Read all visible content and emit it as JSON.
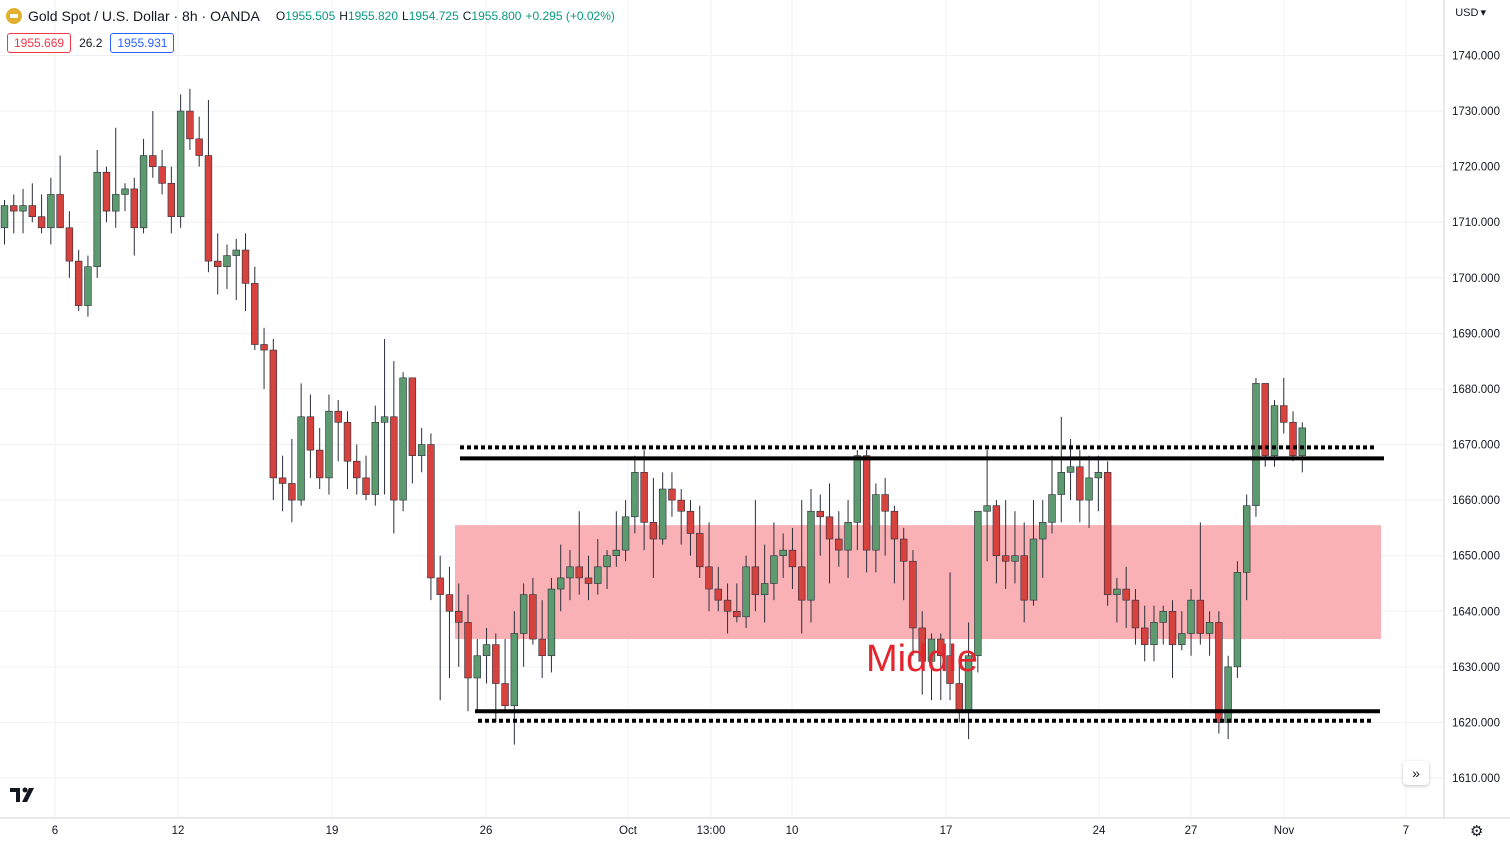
{
  "header": {
    "symbol": "Gold Spot / U.S. Dollar · 8h · OANDA",
    "open_label": "O",
    "open": "1955.505",
    "high_label": "H",
    "high": "1955.820",
    "low_label": "L",
    "low": "1954.725",
    "close_label": "C",
    "close": "1955.800",
    "change": "+0.295 (+0.02%)"
  },
  "quote": {
    "sell": "1955.669",
    "spread": "26.2",
    "buy": "1955.931"
  },
  "currency": "USD",
  "annotation": {
    "middle_label": "Middle"
  },
  "colors": {
    "up": "#5d9a6f",
    "down": "#d6433f",
    "grid": "#eef0f3",
    "zone": "#f9a8ad",
    "line": "#000000"
  },
  "chart_data": {
    "type": "candlestick",
    "ylim": [
      1605,
      1745
    ],
    "y_ticks": [
      "1740.000",
      "1730.000",
      "1720.000",
      "1710.000",
      "1700.000",
      "1690.000",
      "1680.000",
      "1670.000",
      "1660.000",
      "1650.000",
      "1640.000",
      "1630.000",
      "1620.000",
      "1610.000"
    ],
    "x_ticks": [
      "6",
      "12",
      "19",
      "26",
      "Oct",
      "13:00",
      "10",
      "17",
      "24",
      "27",
      "Nov",
      "7"
    ],
    "candles": [
      [
        1709,
        1714,
        1706,
        1713
      ],
      [
        1713,
        1715,
        1708,
        1712
      ],
      [
        1712,
        1716,
        1708,
        1713
      ],
      [
        1713,
        1717,
        1710,
        1711
      ],
      [
        1711,
        1715,
        1708,
        1709
      ],
      [
        1709,
        1718,
        1706,
        1715
      ],
      [
        1715,
        1722,
        1710,
        1709
      ],
      [
        1709,
        1712,
        1700,
        1703
      ],
      [
        1703,
        1705,
        1694,
        1695
      ],
      [
        1695,
        1704,
        1693,
        1702
      ],
      [
        1702,
        1723,
        1700,
        1719
      ],
      [
        1719,
        1720,
        1710,
        1712
      ],
      [
        1712,
        1727,
        1709,
        1715
      ],
      [
        1715,
        1717,
        1712,
        1716
      ],
      [
        1716,
        1718,
        1704,
        1709
      ],
      [
        1709,
        1725,
        1708,
        1722
      ],
      [
        1722,
        1730,
        1718,
        1720
      ],
      [
        1720,
        1723,
        1715,
        1717
      ],
      [
        1717,
        1720,
        1708,
        1711
      ],
      [
        1711,
        1733,
        1709,
        1730
      ],
      [
        1730,
        1734,
        1723,
        1725
      ],
      [
        1725,
        1729,
        1720,
        1722
      ],
      [
        1722,
        1732,
        1701,
        1703
      ],
      [
        1703,
        1708,
        1697,
        1702
      ],
      [
        1702,
        1706,
        1698,
        1704
      ],
      [
        1704,
        1707,
        1696,
        1705
      ],
      [
        1705,
        1708,
        1694,
        1699
      ],
      [
        1699,
        1702,
        1687,
        1688
      ],
      [
        1688,
        1691,
        1680,
        1687
      ],
      [
        1687,
        1689,
        1660,
        1664
      ],
      [
        1664,
        1668,
        1658,
        1663
      ],
      [
        1663,
        1671,
        1656,
        1660
      ],
      [
        1660,
        1681,
        1659,
        1675
      ],
      [
        1675,
        1679,
        1664,
        1669
      ],
      [
        1669,
        1673,
        1662,
        1664
      ],
      [
        1664,
        1679,
        1661,
        1676
      ],
      [
        1676,
        1678,
        1667,
        1674
      ],
      [
        1674,
        1676,
        1662,
        1667
      ],
      [
        1667,
        1670,
        1661,
        1664
      ],
      [
        1664,
        1668,
        1660,
        1661
      ],
      [
        1661,
        1677,
        1659,
        1674
      ],
      [
        1674,
        1689,
        1661,
        1675
      ],
      [
        1675,
        1685,
        1654,
        1660
      ],
      [
        1660,
        1683,
        1658,
        1682
      ],
      [
        1682,
        1682,
        1663,
        1668
      ],
      [
        1668,
        1673,
        1665,
        1670
      ],
      [
        1670,
        1672,
        1642,
        1646
      ],
      [
        1646,
        1650,
        1624,
        1643
      ],
      [
        1643,
        1648,
        1628,
        1640
      ],
      [
        1640,
        1645,
        1630,
        1638
      ],
      [
        1638,
        1643,
        1622,
        1628
      ],
      [
        1628,
        1635,
        1622,
        1632
      ],
      [
        1632,
        1637,
        1627,
        1634
      ],
      [
        1634,
        1636,
        1620,
        1627
      ],
      [
        1627,
        1635,
        1622,
        1623
      ],
      [
        1623,
        1640,
        1616,
        1636
      ],
      [
        1636,
        1645,
        1630,
        1643
      ],
      [
        1643,
        1646,
        1634,
        1635
      ],
      [
        1635,
        1642,
        1628,
        1632
      ],
      [
        1632,
        1646,
        1629,
        1644
      ],
      [
        1644,
        1652,
        1640,
        1646
      ],
      [
        1646,
        1651,
        1642,
        1648
      ],
      [
        1648,
        1658,
        1643,
        1646
      ],
      [
        1646,
        1650,
        1642,
        1645
      ],
      [
        1645,
        1653,
        1643,
        1648
      ],
      [
        1648,
        1651,
        1644,
        1650
      ],
      [
        1650,
        1658,
        1648,
        1651
      ],
      [
        1651,
        1660,
        1649,
        1657
      ],
      [
        1657,
        1668,
        1654,
        1665
      ],
      [
        1665,
        1669,
        1651,
        1656
      ],
      [
        1656,
        1664,
        1646,
        1653
      ],
      [
        1653,
        1665,
        1652,
        1662
      ],
      [
        1662,
        1665,
        1657,
        1660
      ],
      [
        1660,
        1662,
        1652,
        1658
      ],
      [
        1658,
        1660,
        1650,
        1654
      ],
      [
        1654,
        1659,
        1646,
        1648
      ],
      [
        1648,
        1656,
        1640,
        1644
      ],
      [
        1644,
        1648,
        1640,
        1642
      ],
      [
        1642,
        1645,
        1636,
        1640
      ],
      [
        1640,
        1645,
        1638,
        1639
      ],
      [
        1639,
        1650,
        1637,
        1648
      ],
      [
        1648,
        1660,
        1640,
        1643
      ],
      [
        1643,
        1652,
        1638,
        1645
      ],
      [
        1645,
        1656,
        1642,
        1650
      ],
      [
        1650,
        1654,
        1646,
        1651
      ],
      [
        1651,
        1655,
        1644,
        1648
      ],
      [
        1648,
        1660,
        1636,
        1642
      ],
      [
        1642,
        1662,
        1638,
        1658
      ],
      [
        1658,
        1661,
        1650,
        1657
      ],
      [
        1657,
        1663,
        1645,
        1653
      ],
      [
        1653,
        1658,
        1648,
        1651
      ],
      [
        1651,
        1660,
        1646,
        1656
      ],
      [
        1656,
        1669,
        1651,
        1668
      ],
      [
        1668,
        1669,
        1647,
        1651
      ],
      [
        1651,
        1663,
        1647,
        1661
      ],
      [
        1661,
        1664,
        1650,
        1658
      ],
      [
        1658,
        1659,
        1645,
        1653
      ],
      [
        1653,
        1655,
        1642,
        1649
      ],
      [
        1649,
        1651,
        1632,
        1637
      ],
      [
        1637,
        1640,
        1625,
        1631
      ],
      [
        1631,
        1636,
        1624,
        1635
      ],
      [
        1635,
        1636,
        1624,
        1632
      ],
      [
        1632,
        1647,
        1624,
        1627
      ],
      [
        1627,
        1631,
        1620,
        1622
      ],
      [
        1622,
        1638,
        1617,
        1632
      ],
      [
        1632,
        1658,
        1629,
        1658
      ],
      [
        1658,
        1669,
        1649,
        1659
      ],
      [
        1659,
        1660,
        1645,
        1650
      ],
      [
        1650,
        1660,
        1644,
        1649
      ],
      [
        1649,
        1658,
        1645,
        1650
      ],
      [
        1650,
        1656,
        1638,
        1642
      ],
      [
        1642,
        1660,
        1641,
        1653
      ],
      [
        1653,
        1660,
        1646,
        1656
      ],
      [
        1656,
        1668,
        1654,
        1661
      ],
      [
        1661,
        1675,
        1656,
        1665
      ],
      [
        1665,
        1671,
        1660,
        1666
      ],
      [
        1666,
        1669,
        1656,
        1660
      ],
      [
        1660,
        1668,
        1655,
        1664
      ],
      [
        1664,
        1668,
        1658,
        1665
      ],
      [
        1665,
        1667,
        1641,
        1643
      ],
      [
        1643,
        1646,
        1638,
        1644
      ],
      [
        1644,
        1648,
        1637,
        1642
      ],
      [
        1642,
        1644,
        1634,
        1637
      ],
      [
        1637,
        1641,
        1631,
        1634
      ],
      [
        1634,
        1641,
        1631,
        1638
      ],
      [
        1638,
        1641,
        1634,
        1640
      ],
      [
        1640,
        1642,
        1628,
        1634
      ],
      [
        1634,
        1640,
        1633,
        1636
      ],
      [
        1636,
        1644,
        1632,
        1642
      ],
      [
        1642,
        1656,
        1634,
        1636
      ],
      [
        1636,
        1640,
        1632,
        1638
      ],
      [
        1638,
        1640,
        1618,
        1620
      ],
      [
        1620,
        1632,
        1617,
        1630
      ],
      [
        1630,
        1649,
        1628,
        1647
      ],
      [
        1647,
        1661,
        1642,
        1659
      ],
      [
        1659,
        1682,
        1657,
        1681
      ],
      [
        1681,
        1681,
        1666,
        1668
      ],
      [
        1668,
        1678,
        1666,
        1677
      ],
      [
        1677,
        1682,
        1672,
        1674
      ],
      [
        1674,
        1676,
        1667,
        1668
      ],
      [
        1668,
        1674,
        1665,
        1673
      ]
    ],
    "zone": {
      "from": 1635,
      "to": 1655.5,
      "label": "Middle"
    },
    "resistance_solid": 1667.5,
    "resistance_dotted": 1669.5,
    "support_solid": 1622,
    "support_dotted": 1620.3,
    "grid": true
  }
}
